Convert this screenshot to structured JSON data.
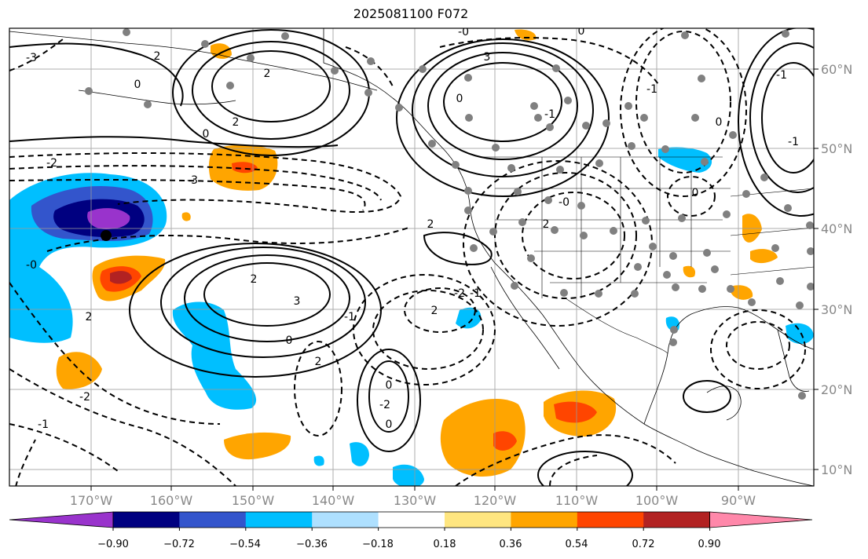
{
  "title": "2025081100 F072",
  "map": {
    "lon_ticks": [
      "170°W",
      "160°W",
      "150°W",
      "140°W",
      "130°W",
      "120°W",
      "110°W",
      "100°W",
      "90°W"
    ],
    "lat_ticks": [
      "60°N",
      "50°N",
      "40°N",
      "30°N",
      "20°N",
      "10°N"
    ],
    "grid": true,
    "contour_labels": [
      "-3",
      "2",
      "0",
      "2",
      "-2",
      "2",
      "0",
      "-3",
      "2",
      "3",
      "-1",
      "0",
      "-0",
      "-2",
      "2",
      "-1",
      "2",
      "0",
      "-2",
      "0",
      "2",
      "-2",
      "-1",
      "2",
      "0",
      "3",
      "-1",
      "-0",
      "0",
      "2",
      "-0",
      "-1",
      "0",
      "-1",
      "-1",
      "0"
    ]
  },
  "colorbar": {
    "labels": [
      "−0.90",
      "−0.72",
      "−0.54",
      "−0.36",
      "−0.18",
      "0.18",
      "0.36",
      "0.54",
      "0.72",
      "0.90"
    ],
    "colors": [
      "#9933cc",
      "#000080",
      "#3355cc",
      "#00bfff",
      "#aee0ff",
      "#ffffff",
      "#ffe680",
      "#ffa500",
      "#ff4500",
      "#b22222",
      "#ff88aa"
    ]
  }
}
